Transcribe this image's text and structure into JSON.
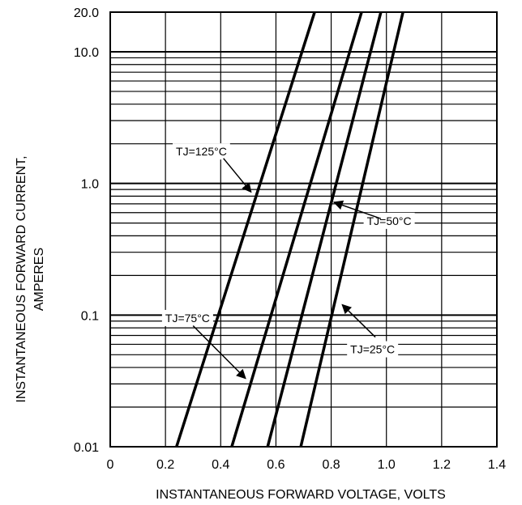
{
  "chart_data": {
    "type": "line",
    "title": "",
    "xlabel": "INSTANTANEOUS FORWARD VOLTAGE, VOLTS",
    "ylabel_line1": "INSTANTANEOUS FORWARD CURRENT,",
    "ylabel_line2": "AMPERES",
    "x_scale": "linear",
    "y_scale": "log",
    "xlim": [
      0,
      1.4
    ],
    "ylim": [
      0.01,
      20.0
    ],
    "grid": true,
    "x_ticks": [
      {
        "value": 0,
        "label": "0"
      },
      {
        "value": 0.2,
        "label": "0.2"
      },
      {
        "value": 0.4,
        "label": "0.4"
      },
      {
        "value": 0.6,
        "label": "0.6"
      },
      {
        "value": 0.8,
        "label": "0.8"
      },
      {
        "value": 1.0,
        "label": "1.0"
      },
      {
        "value": 1.2,
        "label": "1.2"
      },
      {
        "value": 1.4,
        "label": "1.4"
      }
    ],
    "y_ticks": [
      {
        "value": 0.01,
        "label": "0.01"
      },
      {
        "value": 0.1,
        "label": "0.1"
      },
      {
        "value": 1.0,
        "label": "1.0"
      },
      {
        "value": 10.0,
        "label": "10.0"
      },
      {
        "value": 20.0,
        "label": "20.0"
      }
    ],
    "series": [
      {
        "name": "TJ=125°C",
        "x": [
          0.24,
          0.74
        ],
        "y": [
          0.01,
          20.0
        ]
      },
      {
        "name": "TJ=75°C",
        "x": [
          0.44,
          0.91
        ],
        "y": [
          0.01,
          20.0
        ]
      },
      {
        "name": "TJ=50°C",
        "x": [
          0.57,
          0.98
        ],
        "y": [
          0.01,
          20.0
        ]
      },
      {
        "name": "TJ=25°C",
        "x": [
          0.69,
          1.06
        ],
        "y": [
          0.01,
          20.0
        ]
      }
    ],
    "annotations": [
      {
        "text": "TJ=125°C",
        "series": "TJ=125°C",
        "label_at": [
          0.33,
          1.75
        ],
        "label_align": "middle",
        "arrow_from": [
          0.41,
          1.55
        ],
        "arrow_to": [
          0.51,
          0.86
        ]
      },
      {
        "text": "TJ=75°C",
        "series": "TJ=75°C",
        "label_at": [
          0.28,
          0.095
        ],
        "label_align": "middle",
        "arrow_from": [
          0.3,
          0.083
        ],
        "arrow_to": [
          0.49,
          0.033
        ]
      },
      {
        "text": "TJ=50°C",
        "series": "TJ=50°C",
        "label_at": [
          1.01,
          0.52
        ],
        "label_align": "middle",
        "arrow_from": [
          0.98,
          0.54
        ],
        "arrow_to": [
          0.81,
          0.72
        ]
      },
      {
        "text": "TJ=25°C",
        "series": "TJ=25°C",
        "label_at": [
          0.95,
          0.055
        ],
        "label_align": "middle",
        "arrow_from": [
          0.96,
          0.068
        ],
        "arrow_to": [
          0.84,
          0.12
        ]
      }
    ]
  }
}
